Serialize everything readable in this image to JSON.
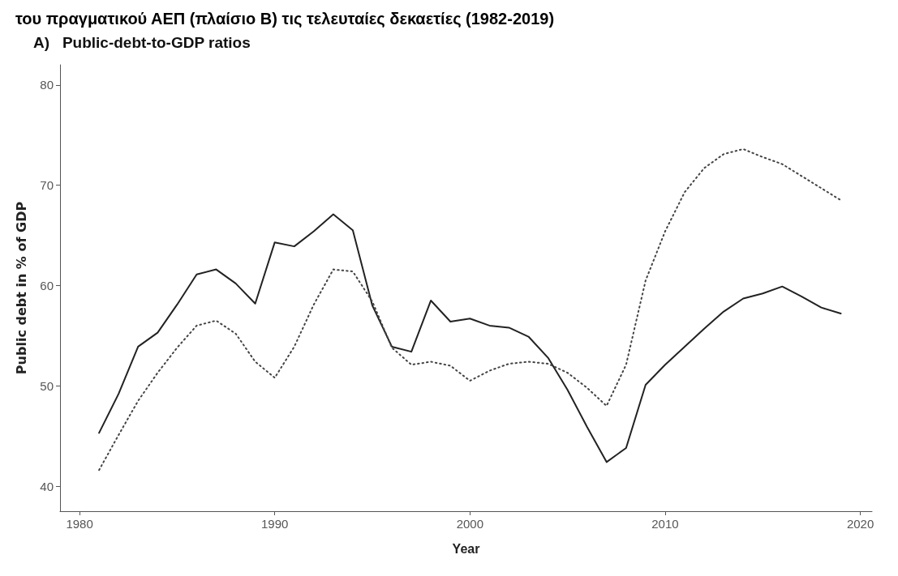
{
  "chart_data": {
    "type": "line",
    "title": "του πραγματικού ΑΕΠ (πλαίσιο Β) τις τελευταίες δεκαετίες (1982-2019)",
    "subtitle": "A)   Public-debt-to-GDP ratios",
    "xlabel": "Year",
    "ylabel": "Public debt in % of GDP",
    "x": [
      1981,
      1982,
      1983,
      1984,
      1985,
      1986,
      1987,
      1988,
      1989,
      1990,
      1991,
      1992,
      1993,
      1994,
      1995,
      1996,
      1997,
      1998,
      1999,
      2000,
      2001,
      2002,
      2003,
      2004,
      2005,
      2006,
      2007,
      2008,
      2009,
      2010,
      2011,
      2012,
      2013,
      2014,
      2015,
      2016,
      2017,
      2018,
      2019
    ],
    "series": [
      {
        "color": "#222222",
        "line_style": "solid",
        "values": [
          45.3,
          49.2,
          53.9,
          55.3,
          58.1,
          61.1,
          61.6,
          60.2,
          58.2,
          64.3,
          63.9,
          65.4,
          67.1,
          65.5,
          58.0,
          53.9,
          53.4,
          58.5,
          56.4,
          56.7,
          56.0,
          55.8,
          54.9,
          52.8,
          49.6,
          45.9,
          42.4,
          43.8,
          50.1,
          52.1,
          53.9,
          55.7,
          57.4,
          58.7,
          59.2,
          59.9,
          58.9,
          57.8,
          57.2
        ]
      },
      {
        "color": "#444444",
        "line_style": "dotted",
        "values": [
          41.6,
          45.1,
          48.5,
          51.3,
          53.8,
          56.0,
          56.5,
          55.2,
          52.4,
          50.8,
          53.9,
          58.1,
          61.6,
          61.4,
          58.4,
          53.8,
          52.1,
          52.4,
          52.0,
          50.5,
          51.5,
          52.2,
          52.4,
          52.2,
          51.3,
          49.8,
          48.0,
          52.1,
          60.5,
          65.4,
          69.3,
          71.7,
          73.1,
          73.6,
          72.8,
          72.1,
          70.9,
          69.7,
          68.5
        ]
      }
    ],
    "xlim": [
      1979,
      2020.6
    ],
    "xticks": [
      1980,
      1990,
      2000,
      2010,
      2020
    ],
    "ylim": [
      37.5,
      82
    ],
    "yticks": [
      40,
      50,
      60,
      70,
      80
    ],
    "grid": false,
    "marker": "none"
  }
}
